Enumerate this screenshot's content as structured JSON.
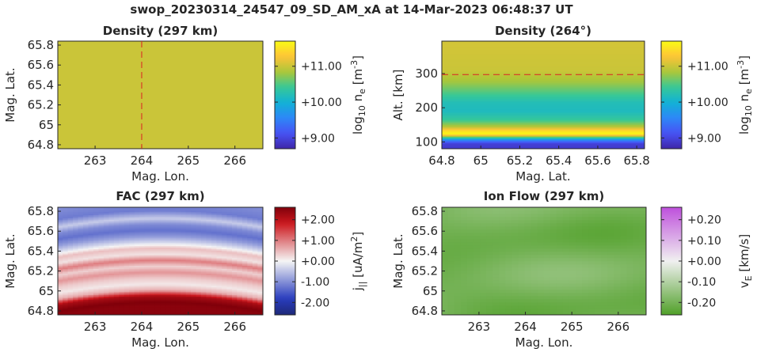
{
  "figure": {
    "title": "swop_20230314_24547_09_SD_AM_xA at 14-Mar-2023 06:48:37 UT"
  },
  "chart_data": [
    {
      "id": "density_map",
      "type": "heatmap",
      "title": "Density (297 km)",
      "xlabel": "Mag. Lon.",
      "ylabel": "Mag. Lat.",
      "xlim": [
        262.2,
        266.6
      ],
      "ylim": [
        64.76,
        65.84
      ],
      "xticks": [
        263,
        264,
        265,
        266
      ],
      "xticklabels": [
        "263",
        "264",
        "265",
        "266"
      ],
      "yticks": [
        64.8,
        65.0,
        65.2,
        65.4,
        65.6,
        65.8
      ],
      "yticklabels": [
        "64.8",
        "65",
        "65.2",
        "65.4",
        "65.6",
        "65.8"
      ],
      "colormap": "parula",
      "value_desc": "nearly uniform field, log10 ne ~ 11.0",
      "field_value": 11.0,
      "reference_line": {
        "orientation": "vertical",
        "value": 264.0,
        "color": "#dd2222",
        "style": "dashed"
      },
      "colorbar": {
        "label": "log10 ne [m-3]",
        "label_parts": {
          "base": "log",
          "sub1": "10",
          "mid": " n",
          "sub2": "e",
          "unit": " [m",
          "sup": "-3",
          "end": "]"
        },
        "min": 8.7,
        "max": 11.7,
        "ticks": [
          9.0,
          10.0,
          11.0
        ],
        "ticklabels": [
          "+9.00",
          "+10.00",
          "+11.00"
        ]
      }
    },
    {
      "id": "density_profile",
      "type": "heatmap",
      "title": "Density (264°)",
      "xlabel": "Mag. Lat.",
      "ylabel": "Alt. [km]",
      "xlim": [
        64.8,
        65.84
      ],
      "ylim": [
        80,
        395
      ],
      "xticks": [
        64.8,
        65.0,
        65.2,
        65.4,
        65.6,
        65.8
      ],
      "xticklabels": [
        "64.8",
        "65",
        "65.2",
        "65.4",
        "65.6",
        "65.8"
      ],
      "yticks": [
        100,
        200,
        300
      ],
      "yticklabels": [
        "100",
        "200",
        "300"
      ],
      "colormap": "parula",
      "altitude_profile": [
        {
          "alt": 80,
          "value": 8.9
        },
        {
          "alt": 95,
          "value": 8.95
        },
        {
          "alt": 105,
          "value": 9.5
        },
        {
          "alt": 112,
          "value": 10.3
        },
        {
          "alt": 118,
          "value": 11.0
        },
        {
          "alt": 124,
          "value": 11.65
        },
        {
          "alt": 132,
          "value": 11.5
        },
        {
          "alt": 145,
          "value": 10.9
        },
        {
          "alt": 165,
          "value": 10.4
        },
        {
          "alt": 190,
          "value": 10.15
        },
        {
          "alt": 215,
          "value": 10.2
        },
        {
          "alt": 245,
          "value": 10.5
        },
        {
          "alt": 275,
          "value": 10.8
        },
        {
          "alt": 310,
          "value": 11.0
        },
        {
          "alt": 395,
          "value": 11.05
        }
      ],
      "reference_line": {
        "orientation": "horizontal",
        "value": 297,
        "color": "#dd2222",
        "style": "dashed"
      },
      "colorbar": {
        "label": "log10 ne [m-3]",
        "label_parts": {
          "base": "log",
          "sub1": "10",
          "mid": " n",
          "sub2": "e",
          "unit": " [m",
          "sup": "-3",
          "end": "]"
        },
        "min": 8.7,
        "max": 11.7,
        "ticks": [
          9.0,
          10.0,
          11.0
        ],
        "ticklabels": [
          "+9.00",
          "+10.00",
          "+11.00"
        ]
      }
    },
    {
      "id": "fac_map",
      "type": "heatmap",
      "title": "FAC (297 km)",
      "xlabel": "Mag. Lon.",
      "ylabel": "Mag. Lat.",
      "xlim": [
        262.2,
        266.6
      ],
      "ylim": [
        64.76,
        65.84
      ],
      "xticks": [
        263,
        264,
        265,
        266
      ],
      "xticklabels": [
        "263",
        "264",
        "265",
        "266"
      ],
      "yticks": [
        64.8,
        65.0,
        65.2,
        65.4,
        65.6,
        65.8
      ],
      "yticklabels": [
        "64.8",
        "65",
        "65.2",
        "65.4",
        "65.6",
        "65.8"
      ],
      "colormap": "diverging blue-white-red",
      "latitude_profile": [
        {
          "lat": 64.76,
          "value": 2.5
        },
        {
          "lat": 64.8,
          "value": 2.6
        },
        {
          "lat": 64.86,
          "value": 2.2
        },
        {
          "lat": 64.92,
          "value": 0.6
        },
        {
          "lat": 64.98,
          "value": 0.1
        },
        {
          "lat": 65.04,
          "value": 0.35
        },
        {
          "lat": 65.1,
          "value": 0.8
        },
        {
          "lat": 65.16,
          "value": 0.3
        },
        {
          "lat": 65.22,
          "value": 1.0
        },
        {
          "lat": 65.28,
          "value": 0.15
        },
        {
          "lat": 65.34,
          "value": 0.45
        },
        {
          "lat": 65.4,
          "value": -0.3
        },
        {
          "lat": 65.46,
          "value": -0.9
        },
        {
          "lat": 65.52,
          "value": -1.3
        },
        {
          "lat": 65.58,
          "value": -1.05
        },
        {
          "lat": 65.64,
          "value": -0.4
        },
        {
          "lat": 65.72,
          "value": -1.2
        },
        {
          "lat": 65.84,
          "value": -1.0
        }
      ],
      "band_curvature_deg": 0.09,
      "colorbar": {
        "label": "j|| [uA/m2]",
        "label_parts": {
          "base": "j",
          "sub1": "||",
          "unit": " [uA/m",
          "sup": "2",
          "end": "]"
        },
        "min": -2.6,
        "max": 2.6,
        "ticks": [
          -2.0,
          -1.0,
          0.0,
          1.0,
          2.0
        ],
        "ticklabels": [
          "-2.00",
          "-1.00",
          "+0.00",
          "+1.00",
          "+2.00"
        ]
      }
    },
    {
      "id": "ionflow_map",
      "type": "heatmap",
      "title": "Ion Flow (297 km)",
      "xlabel": "Mag. Lon.",
      "ylabel": "Mag. Lat.",
      "xlim": [
        262.2,
        266.6
      ],
      "ylim": [
        64.76,
        65.84
      ],
      "xticks": [
        263,
        264,
        265,
        266
      ],
      "xticklabels": [
        "263",
        "264",
        "265",
        "266"
      ],
      "yticks": [
        64.8,
        65.0,
        65.2,
        65.4,
        65.6,
        65.8
      ],
      "yticklabels": [
        "64.8",
        "65",
        "65.2",
        "65.4",
        "65.6",
        "65.8"
      ],
      "colormap": "diverging green-white-purple",
      "value_desc": "negative vE throughout, about -0.17 to -0.23 km/s",
      "colorbar": {
        "label": "vE [km/s]",
        "label_parts": {
          "base": "v",
          "sub1": "E",
          "unit": " [km/s]"
        },
        "min": -0.26,
        "max": 0.26,
        "ticks": [
          -0.2,
          -0.1,
          0.0,
          0.1,
          0.2
        ],
        "ticklabels": [
          "-0.20",
          "-0.10",
          "+0.00",
          "+0.10",
          "+0.20"
        ]
      }
    }
  ]
}
